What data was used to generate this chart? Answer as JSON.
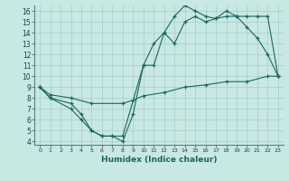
{
  "xlabel": "Humidex (Indice chaleur)",
  "bg_color": "#c8e8e4",
  "grid_color": "#a8ccc8",
  "line_color": "#1a6660",
  "xlim": [
    -0.5,
    23.5
  ],
  "ylim": [
    3.7,
    16.5
  ],
  "xticks": [
    0,
    1,
    2,
    3,
    4,
    5,
    6,
    7,
    8,
    9,
    10,
    11,
    12,
    13,
    14,
    15,
    16,
    17,
    18,
    19,
    20,
    21,
    22,
    23
  ],
  "yticks": [
    4,
    5,
    6,
    7,
    8,
    9,
    10,
    11,
    12,
    13,
    14,
    15,
    16
  ],
  "line1_x": [
    0,
    1,
    3,
    4,
    5,
    6,
    7,
    8,
    9,
    10,
    11,
    12,
    13,
    14,
    15,
    16,
    17,
    18,
    19,
    20,
    21,
    22,
    23
  ],
  "line1_y": [
    9,
    8,
    7,
    6,
    5,
    4.5,
    4.5,
    4,
    6.5,
    11,
    13,
    14,
    15.5,
    16.5,
    16,
    15.5,
    15.3,
    16,
    15.5,
    14.5,
    13.5,
    12,
    10
  ],
  "line2_x": [
    0,
    1,
    3,
    4,
    5,
    6,
    7,
    8,
    10,
    11,
    12,
    13,
    14,
    15,
    16,
    17,
    18,
    19,
    20,
    21,
    22,
    23
  ],
  "line2_y": [
    9,
    8,
    7.5,
    6.5,
    5,
    4.5,
    4.5,
    4.5,
    11,
    11,
    14,
    13,
    15,
    15.5,
    15,
    15.3,
    15.5,
    15.5,
    15.5,
    15.5,
    15.5,
    10
  ],
  "line3_x": [
    0,
    1,
    3,
    5,
    8,
    9,
    10,
    12,
    14,
    16,
    18,
    20,
    22,
    23
  ],
  "line3_y": [
    9,
    8.3,
    8,
    7.5,
    7.5,
    7.8,
    8.2,
    8.5,
    9,
    9.2,
    9.5,
    9.5,
    10,
    10
  ]
}
